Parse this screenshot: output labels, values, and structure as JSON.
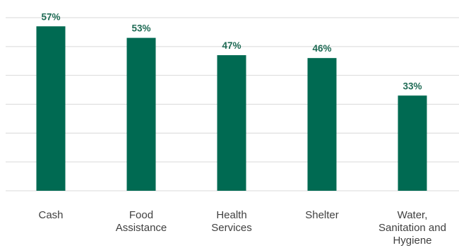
{
  "chart_data": {
    "type": "bar",
    "categories": [
      "Cash",
      "Food Assistance",
      "Health Services",
      "Shelter",
      "Water, Sanitation and Hygiene"
    ],
    "category_lines": [
      [
        "Cash"
      ],
      [
        "Food",
        "Assistance"
      ],
      [
        "Health",
        "Services"
      ],
      [
        "Shelter"
      ],
      [
        "Water,",
        "Sanitation and",
        "Hygiene"
      ]
    ],
    "values": [
      57,
      53,
      47,
      46,
      33
    ],
    "data_labels": [
      "57%",
      "53%",
      "47%",
      "46%",
      "33%"
    ],
    "ylim": [
      0,
      60
    ],
    "grid": true,
    "bar_color": "#006a52",
    "label_color": "#1f6b55"
  }
}
